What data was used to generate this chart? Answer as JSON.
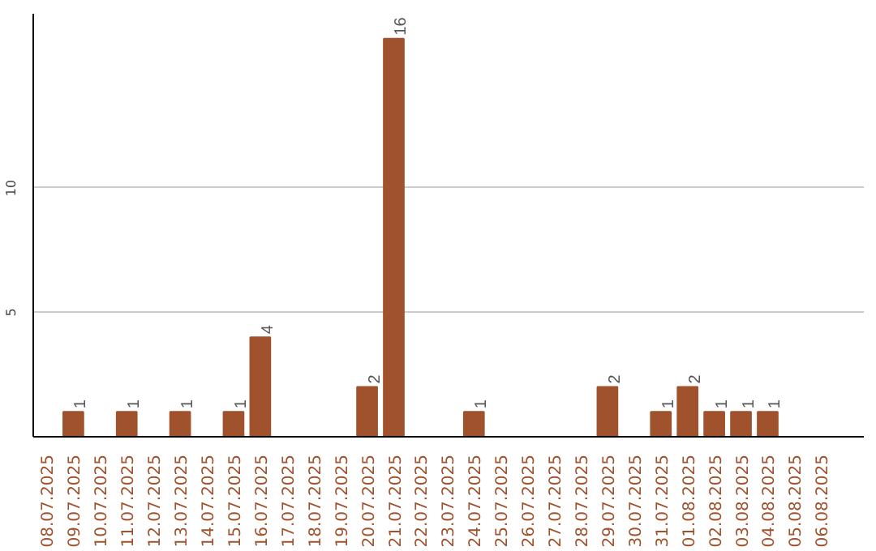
{
  "chart_data": {
    "type": "bar",
    "categories": [
      "08.07.2025",
      "09.07.2025",
      "10.07.2025",
      "11.07.2025",
      "12.07.2025",
      "13.07.2025",
      "14.07.2025",
      "15.07.2025",
      "16.07.2025",
      "17.07.2025",
      "18.07.2025",
      "19.07.2025",
      "20.07.2025",
      "21.07.2025",
      "22.07.2025",
      "23.07.2025",
      "24.07.2025",
      "25.07.2025",
      "26.07.2025",
      "27.07.2025",
      "28.07.2025",
      "29.07.2025",
      "30.07.2025",
      "31.07.2025",
      "01.08.2025",
      "02.08.2025",
      "03.08.2025",
      "04.08.2025",
      "05.08.2025",
      "06.08.2025"
    ],
    "values": [
      0,
      1,
      0,
      1,
      0,
      1,
      0,
      1,
      4,
      0,
      0,
      0,
      2,
      16,
      0,
      0,
      1,
      0,
      0,
      0,
      0,
      2,
      0,
      1,
      2,
      1,
      1,
      1,
      0,
      0
    ],
    "value_labels": [
      null,
      "1",
      null,
      "1",
      null,
      "1",
      null,
      "1",
      "4",
      null,
      null,
      null,
      "2",
      "16",
      null,
      null,
      "1",
      null,
      null,
      null,
      null,
      "2",
      null,
      "1",
      "2",
      "1",
      "1",
      "1",
      null,
      null
    ],
    "color": "#a0522d",
    "ylim": [
      0,
      17
    ],
    "yticks": [
      5,
      10
    ],
    "grid": "y"
  }
}
